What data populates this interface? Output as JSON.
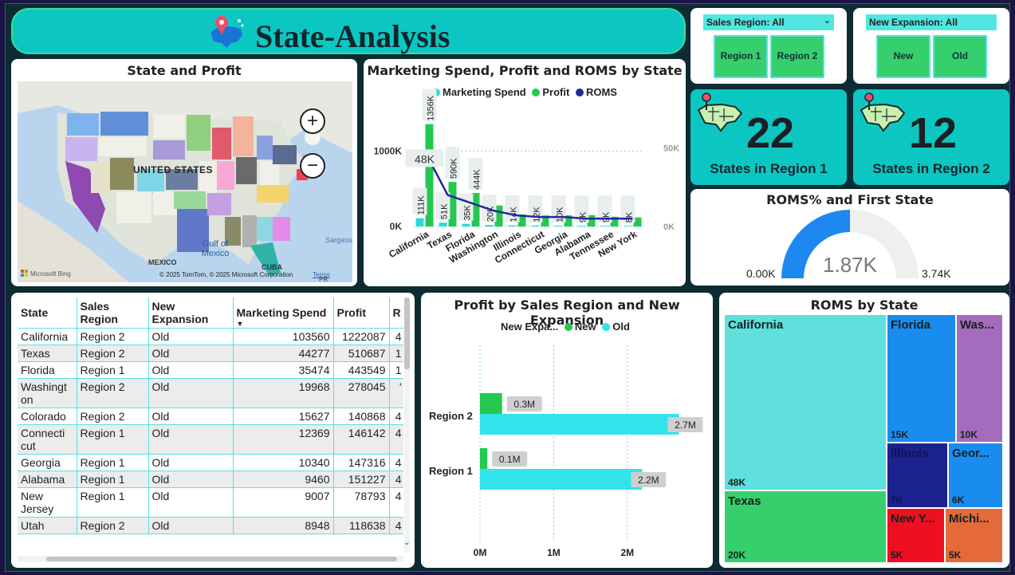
{
  "header": {
    "title": "State-Analysis",
    "icon": "us-map-pin-icon"
  },
  "slicers": {
    "sales_region": {
      "label": "Sales Region: All",
      "options": [
        "Region 1",
        "Region 2"
      ]
    },
    "new_expansion": {
      "label": "New Expansion: All",
      "options": [
        "New",
        "Old"
      ]
    }
  },
  "kpis": [
    {
      "value": "22",
      "label": "States in Region 1"
    },
    {
      "value": "12",
      "label": "States in Region 2"
    }
  ],
  "map": {
    "title": "State and Profit",
    "country_label": "UNITED STATES",
    "gulf_label": "Gulf of Mexico",
    "mexico_label": "MEXICO",
    "cuba_label": "CUBA",
    "sargasso_label": "Sargasso",
    "attribution": "© 2025 TomTom, © 2025 Microsoft Corporation",
    "terms": "Terms",
    "bing": "Microsoft Bing",
    "pr": "PR"
  },
  "combo": {
    "title": "Marketing Spend, Profit and ROMS by State",
    "legend": [
      "Marketing Spend",
      "Profit",
      "ROMS"
    ],
    "legend_colors": [
      "#2ad9e0",
      "#23c94f",
      "#1f2a9a"
    ]
  },
  "gauge": {
    "title": "ROMS% and First State",
    "min": "0.00K",
    "max": "3.74K",
    "value_label": "1.87K",
    "fraction": 0.5
  },
  "table": {
    "columns": [
      "State",
      "Sales Region",
      "New Expansion",
      "Marketing Spend",
      "Profit",
      "R"
    ],
    "rows": [
      [
        "California",
        "Region 2",
        "Old",
        "103560",
        "1222087",
        "4"
      ],
      [
        "Texas",
        "Region 2",
        "Old",
        "44277",
        "510687",
        "1"
      ],
      [
        "Florida",
        "Region 1",
        "Old",
        "35474",
        "443549",
        "1"
      ],
      [
        "Washingt on",
        "Region 2",
        "Old",
        "19968",
        "278045",
        "'"
      ],
      [
        "Colorado",
        "Region 2",
        "Old",
        "15627",
        "140868",
        "4"
      ],
      [
        "Connecti cut",
        "Region 1",
        "Old",
        "12369",
        "146142",
        "4"
      ],
      [
        "Georgia",
        "Region 1",
        "Old",
        "10340",
        "147316",
        "4"
      ],
      [
        "Alabama",
        "Region 1",
        "Old",
        "9460",
        "151227",
        "4"
      ],
      [
        "New Jersey",
        "Region 1",
        "Old",
        "9007",
        "78793",
        "4"
      ],
      [
        "Utah",
        "Region 2",
        "Old",
        "8948",
        "118638",
        "4"
      ]
    ]
  },
  "chart_data": [
    {
      "type": "bar",
      "title": "Marketing Spend, Profit and ROMS by State",
      "categories": [
        "California",
        "Texas",
        "Florida",
        "Washington",
        "Illinois",
        "Connecticut",
        "Georgia",
        "Alabama",
        "Tennessee",
        "New York"
      ],
      "series": [
        {
          "name": "Marketing Spend",
          "values": [
            111000,
            51000,
            35000,
            20000,
            14000,
            12000,
            10000,
            9000,
            9000,
            8000
          ],
          "labels": [
            "111K",
            "51K",
            "35K",
            "20K",
            "14K",
            "12K",
            "10K",
            "9K",
            "9K",
            "8K"
          ]
        },
        {
          "name": "Profit",
          "values": [
            1356000,
            590000,
            444000,
            278000,
            160000,
            146000,
            147000,
            151000,
            130000,
            120000
          ],
          "labels": [
            "1356K",
            "590K",
            "444K"
          ]
        },
        {
          "name": "ROMS",
          "values": [
            48000,
            20000,
            15000,
            10000,
            7000,
            6000,
            6000,
            5000,
            5000,
            5000
          ],
          "labels": [
            "48K"
          ]
        }
      ],
      "y_left_ticks": [
        "0K",
        "1000K"
      ],
      "y_right_ticks": [
        "0K",
        "50K"
      ],
      "ylim_left": [
        0,
        1500000
      ],
      "ylim_right": [
        0,
        72000
      ]
    },
    {
      "type": "bar",
      "orientation": "horizontal",
      "title": "Profit by Sales Region and New Expansion",
      "legend_title": "New Expa...",
      "categories": [
        "Region 2",
        "Region 1"
      ],
      "series": [
        {
          "name": "New",
          "values": [
            0.3,
            0.1
          ],
          "labels": [
            "0.3M",
            "0.1M"
          ],
          "color": "#23c94f"
        },
        {
          "name": "Old",
          "values": [
            2.7,
            2.2
          ],
          "labels": [
            "2.7M",
            "2.2M"
          ],
          "color": "#33e3ec"
        }
      ],
      "x_ticks": [
        "0M",
        "1M",
        "2M"
      ],
      "xlim": [
        0,
        2.9
      ]
    },
    {
      "type": "treemap",
      "title": "ROMS by State",
      "items": [
        {
          "name": "California",
          "value": "48K",
          "color": "#5fe0dc"
        },
        {
          "name": "Texas",
          "value": "20K",
          "color": "#36cf6d"
        },
        {
          "name": "Florida",
          "value": "15K",
          "color": "#1a8cf0"
        },
        {
          "name": "Was...",
          "value": "10K",
          "color": "#a56bbd"
        },
        {
          "name": "Illinois",
          "value": "7K",
          "color": "#1b218e"
        },
        {
          "name": "Geor...",
          "value": "6K",
          "color": "#1a8cf0"
        },
        {
          "name": "New Y...",
          "value": "5K",
          "color": "#ee1020"
        },
        {
          "name": "Michi...",
          "value": "5K",
          "color": "#e46a3a"
        }
      ]
    }
  ]
}
